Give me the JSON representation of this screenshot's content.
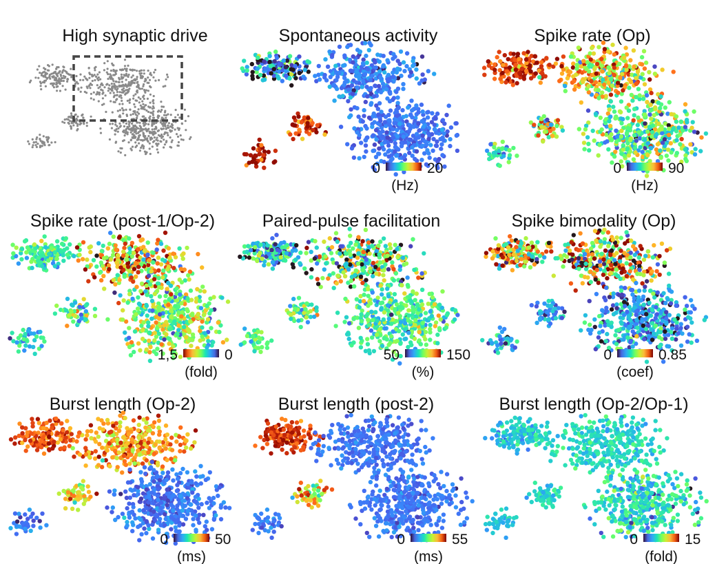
{
  "chart_data": [
    {
      "type": "scatter",
      "title": "High synaptic drive",
      "encoding": "uniform-gray",
      "point_color": "#8a8a8a",
      "annotation": "dashed rectangle highlighting upper clusters",
      "colorbar": null
    },
    {
      "type": "scatter",
      "title": "Spontaneous activity",
      "colormap": "turbo",
      "colorbar": {
        "min_label": "0",
        "max_label": "20",
        "unit": "(Hz)",
        "range": [
          0,
          20
        ]
      }
    },
    {
      "type": "scatter",
      "title": "Spike rate (Op)",
      "colormap": "turbo",
      "colorbar": {
        "min_label": "0",
        "max_label": "90",
        "unit": "(Hz)",
        "range": [
          0,
          90
        ]
      }
    },
    {
      "type": "scatter",
      "title": "Spike rate (post-1/Op-2)",
      "colormap": "turbo",
      "colorbar": {
        "min_label": "1,5",
        "max_label": "0",
        "unit": "(fold)",
        "range": [
          1.5,
          0
        ]
      }
    },
    {
      "type": "scatter",
      "title": "Paired-pulse facilitation",
      "colormap": "turbo",
      "colorbar": {
        "min_label": "50",
        "max_label": "150",
        "unit": "(%)",
        "range": [
          50,
          150
        ]
      }
    },
    {
      "type": "scatter",
      "title": "Spike bimodality (Op)",
      "colormap": "turbo",
      "colorbar": {
        "min_label": "0",
        "max_label": "0.85",
        "unit": "(coef)",
        "range": [
          0,
          0.85
        ]
      }
    },
    {
      "type": "scatter",
      "title": "Burst length (Op-2)",
      "colormap": "turbo",
      "colorbar": {
        "min_label": "0",
        "max_label": "50",
        "unit": "(ms)",
        "range": [
          0,
          50
        ]
      }
    },
    {
      "type": "scatter",
      "title": "Burst length (post-2)",
      "colormap": "turbo",
      "colorbar": {
        "min_label": "0",
        "max_label": "55",
        "unit": "(ms)",
        "range": [
          0,
          55
        ]
      }
    },
    {
      "type": "scatter",
      "title": "Burst length (Op-2/Op-1)",
      "colormap": "turbo",
      "colorbar": {
        "min_label": "0",
        "max_label": "15",
        "unit": "(fold)",
        "range": [
          0,
          15
        ]
      }
    }
  ]
}
